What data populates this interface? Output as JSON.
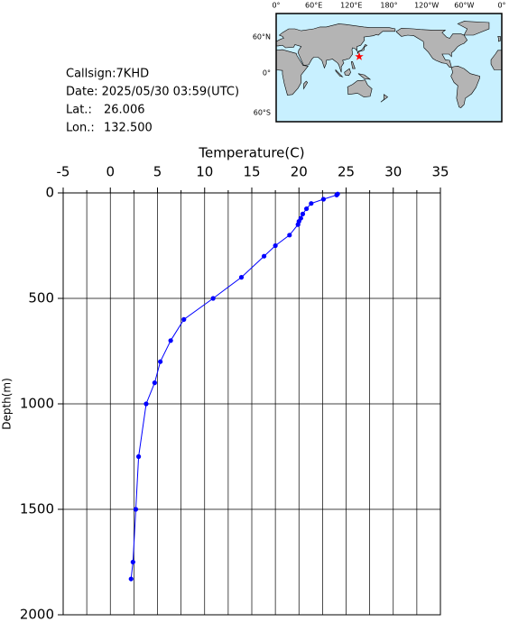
{
  "station": {
    "callsign": "Callsign:7KHD",
    "date": "Date:  2025/05/30 03:59(UTC)",
    "lat_label": "Lat.:",
    "lat": {
      "value": 26.006,
      "label": "26.006"
    },
    "lon_label": "Lon.:",
    "lon": {
      "value": 132.5,
      "label": "132.500"
    }
  },
  "map": {
    "lon_labels": [
      "0°",
      "60°E",
      "120°E",
      "180°",
      "120°W",
      "60°W",
      "0°"
    ],
    "lat_labels": [
      "60°N",
      "0°",
      "60°S"
    ]
  },
  "chart_data": {
    "type": "line",
    "xlabel": "Temperature(C)",
    "ylabel": "Depth(m)",
    "x": [
      24.1,
      24.0,
      22.6,
      21.3,
      20.8,
      20.4,
      20.2,
      20.0,
      19.9,
      19.0,
      17.5,
      16.3,
      13.9,
      10.9,
      7.8,
      6.4,
      5.3,
      4.7,
      3.8,
      3.0,
      2.7,
      2.4,
      2.2
    ],
    "series": [
      {
        "name": "Temperature",
        "color": "#0000ff",
        "values": [
          5,
          10,
          30,
          50,
          75,
          100,
          120,
          135,
          150,
          200,
          250,
          300,
          400,
          500,
          600,
          700,
          800,
          900,
          1000,
          1250,
          1500,
          1750,
          1830
        ]
      }
    ],
    "xlim": [
      -5,
      35
    ],
    "xticks": [
      -5,
      0,
      5,
      10,
      15,
      20,
      25,
      30,
      35
    ],
    "ylim": [
      0,
      2000
    ],
    "yticks": [
      0,
      500,
      1000,
      1500,
      2000
    ],
    "y_inverted": true,
    "grid": true
  }
}
